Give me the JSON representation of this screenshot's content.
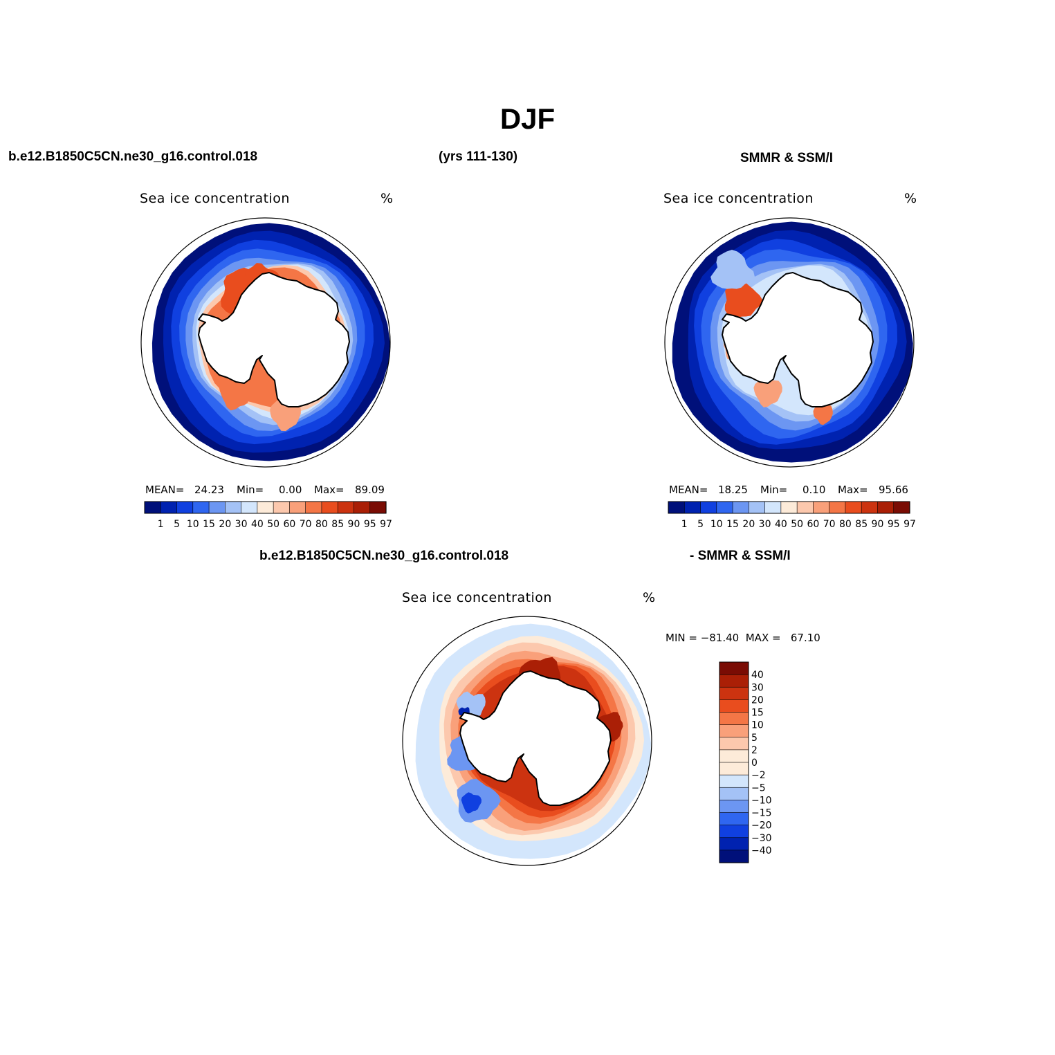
{
  "figure": {
    "title": "DJF",
    "model_label": "b.e12.B1850C5CN.ne30_g16.control.018",
    "years_label": "(yrs 111-130)",
    "obs_label": "SMMR & SSM/I",
    "diff_model_label": "b.e12.B1850C5CN.ne30_g16.control.018",
    "diff_obs_label": "- SMMR & SSM/I"
  },
  "panels": {
    "model": {
      "variable": "Sea ice concentration",
      "units": "%",
      "mean_label": "MEAN=",
      "mean_value": "24.23",
      "min_label": "Min=",
      "min_value": "0.00",
      "max_label": "Max=",
      "max_value": "89.09"
    },
    "obs": {
      "variable": "Sea ice concentration",
      "units": "%",
      "mean_label": "MEAN=",
      "mean_value": "18.25",
      "min_label": "Min=",
      "min_value": "0.10",
      "max_label": "Max=",
      "max_value": "95.66"
    },
    "diff": {
      "variable": "Sea ice concentration",
      "units": "%",
      "minmax_text": "MIN = −81.40  MAX =   67.10"
    }
  },
  "chart_data": [
    {
      "type": "heatmap",
      "title": "Sea ice concentration",
      "units": "%",
      "projection": "south polar stereographic",
      "region": "Antarctica",
      "stats": {
        "mean": 24.23,
        "min": 0.0,
        "max": 89.09
      },
      "colorbar_levels": [
        "1",
        "5",
        "10",
        "15",
        "20",
        "30",
        "40",
        "50",
        "60",
        "70",
        "80",
        "85",
        "90",
        "95",
        "97"
      ],
      "colorbar_colors": [
        "#00107a",
        "#0022b0",
        "#1040e0",
        "#2f66f0",
        "#6c96f2",
        "#a4c2f6",
        "#d3e6fc",
        "#fdebd9",
        "#fcc8ad",
        "#f9a07a",
        "#f47646",
        "#e94d1e",
        "#cc3310",
        "#aa1f06",
        "#7a0c04"
      ],
      "legend_placement": "bottom"
    },
    {
      "type": "heatmap",
      "title": "Sea ice concentration",
      "units": "%",
      "projection": "south polar stereographic",
      "region": "Antarctica",
      "stats": {
        "mean": 18.25,
        "min": 0.1,
        "max": 95.66
      },
      "colorbar_levels": [
        "1",
        "5",
        "10",
        "15",
        "20",
        "30",
        "40",
        "50",
        "60",
        "70",
        "80",
        "85",
        "90",
        "95",
        "97"
      ],
      "colorbar_colors": [
        "#00107a",
        "#0022b0",
        "#1040e0",
        "#2f66f0",
        "#6c96f2",
        "#a4c2f6",
        "#d3e6fc",
        "#fdebd9",
        "#fcc8ad",
        "#f9a07a",
        "#f47646",
        "#e94d1e",
        "#cc3310",
        "#aa1f06",
        "#7a0c04"
      ],
      "legend_placement": "bottom"
    },
    {
      "type": "heatmap",
      "title": "Sea ice concentration",
      "units": "%",
      "projection": "south polar stereographic",
      "region": "Antarctica",
      "stats": {
        "min": -81.4,
        "max": 67.1
      },
      "colorbar_levels": [
        "40",
        "30",
        "20",
        "15",
        "10",
        "5",
        "2",
        "0",
        "−2",
        "−5",
        "−10",
        "−15",
        "−20",
        "−30",
        "−40"
      ],
      "colorbar_colors": [
        "#7a0c04",
        "#aa1f06",
        "#cc3310",
        "#e94d1e",
        "#f47646",
        "#f9a07a",
        "#fcc8ad",
        "#fdebd9",
        "#d3e6fc",
        "#a4c2f6",
        "#6c96f2",
        "#2f66f0",
        "#1040e0",
        "#0022b0",
        "#00107a"
      ],
      "legend_placement": "right"
    }
  ]
}
